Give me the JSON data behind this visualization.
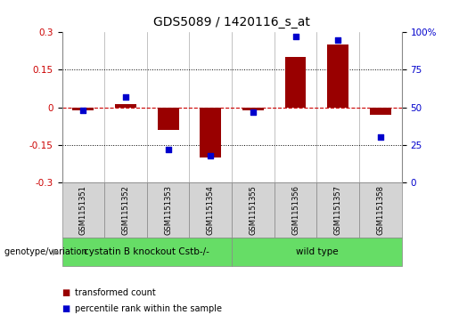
{
  "title": "GDS5089 / 1420116_s_at",
  "samples": [
    "GSM1151351",
    "GSM1151352",
    "GSM1151353",
    "GSM1151354",
    "GSM1151355",
    "GSM1151356",
    "GSM1151357",
    "GSM1151358"
  ],
  "transformed_count": [
    -0.01,
    0.012,
    -0.09,
    -0.2,
    -0.01,
    0.2,
    0.25,
    -0.03
  ],
  "percentile_rank": [
    48,
    57,
    22,
    18,
    47,
    97,
    95,
    30
  ],
  "bar_color": "#990000",
  "dot_color": "#0000cc",
  "ylim_left": [
    -0.3,
    0.3
  ],
  "ylim_right": [
    0,
    100
  ],
  "yticks_left": [
    -0.3,
    -0.15,
    0.0,
    0.15,
    0.3
  ],
  "yticks_right": [
    0,
    25,
    50,
    75,
    100
  ],
  "hline_color": "#cc0000",
  "dotted_lines": [
    -0.15,
    0.15
  ],
  "group1_label": "cystatin B knockout Cstb-/-",
  "group1_indices": [
    0,
    1,
    2,
    3
  ],
  "group2_label": "wild type",
  "group2_indices": [
    4,
    5,
    6,
    7
  ],
  "group_color": "#66dd66",
  "sample_box_color": "#d4d4d4",
  "sample_box_edge": "#888888",
  "row_label": "genotype/variation",
  "legend_bar_label": "transformed count",
  "legend_dot_label": "percentile rank within the sample",
  "background_color": "#ffffff",
  "plot_bg_color": "#ffffff",
  "tick_color_left": "#cc0000",
  "tick_color_right": "#0000cc",
  "bar_width": 0.5,
  "title_fontsize": 10,
  "tick_fontsize": 7.5,
  "sample_fontsize": 6,
  "group_fontsize": 7.5,
  "legend_fontsize": 7,
  "row_label_fontsize": 7
}
